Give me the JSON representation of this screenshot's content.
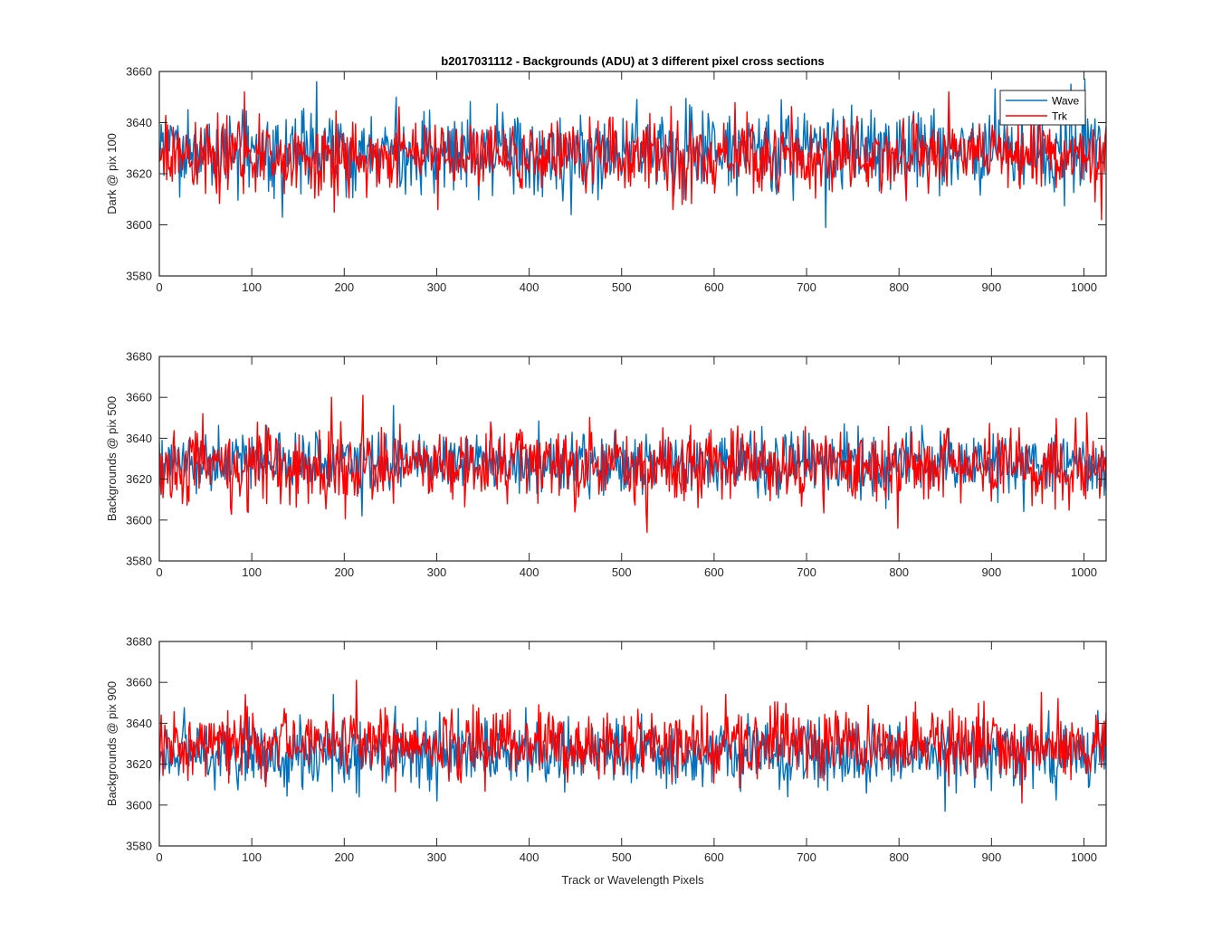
{
  "chart_data": [
    {
      "type": "line",
      "title": "b2017031112 - Backgrounds (ADU) at 3 different pixel cross sections",
      "xlabel": "",
      "ylabel": "Dark @ pix 100",
      "xlim": [
        0,
        1024
      ],
      "ylim": [
        3580,
        3660
      ],
      "xticks": [
        0,
        100,
        200,
        300,
        400,
        500,
        600,
        700,
        800,
        900,
        1000
      ],
      "yticks": [
        3580,
        3600,
        3620,
        3640,
        3660
      ],
      "legend": {
        "placement": "top-right",
        "entries": [
          "Wave",
          "Trk"
        ]
      },
      "grid": false,
      "series": [
        {
          "name": "Wave",
          "color": "#0072BD",
          "n_points": 1024,
          "mean": 3629,
          "approx_min": 3599,
          "approx_max": 3657,
          "spikes": [
            [
              170,
              3656
            ],
            [
              720,
              3599
            ],
            [
              1000,
              3657
            ],
            [
              133,
              3603
            ],
            [
              445,
              3604
            ],
            [
              985,
              3655
            ]
          ]
        },
        {
          "name": "Trk",
          "color": "#FF0000",
          "n_points": 1024,
          "mean": 3627,
          "approx_min": 3602,
          "approx_max": 3654,
          "spikes": [
            [
              92,
              3652
            ],
            [
              189,
              3605
            ],
            [
              1018,
              3602
            ],
            [
              853,
              3652
            ],
            [
              555,
              3606
            ]
          ]
        }
      ]
    },
    {
      "type": "line",
      "title": "",
      "xlabel": "",
      "ylabel": "Backgrounds @ pix 500",
      "xlim": [
        0,
        1024
      ],
      "ylim": [
        3580,
        3680
      ],
      "xticks": [
        0,
        100,
        200,
        300,
        400,
        500,
        600,
        700,
        800,
        900,
        1000
      ],
      "yticks": [
        3580,
        3600,
        3620,
        3640,
        3660,
        3680
      ],
      "grid": false,
      "series": [
        {
          "name": "Wave",
          "color": "#0072BD",
          "n_points": 1024,
          "mean": 3628,
          "approx_min": 3602,
          "approx_max": 3656,
          "spikes": [
            [
              253,
              3656
            ],
            [
              219,
              3602
            ]
          ]
        },
        {
          "name": "Trk",
          "color": "#FF0000",
          "n_points": 1024,
          "mean": 3626,
          "approx_min": 3594,
          "approx_max": 3661,
          "spikes": [
            [
              186,
              3660
            ],
            [
              220,
              3661
            ],
            [
              527,
              3594
            ],
            [
              798,
              3596
            ]
          ]
        }
      ]
    },
    {
      "type": "line",
      "title": "",
      "xlabel": "Track or Wavelength Pixels",
      "ylabel": "Backgrounds @ pix 900",
      "xlim": [
        0,
        1024
      ],
      "ylim": [
        3580,
        3680
      ],
      "xticks": [
        0,
        100,
        200,
        300,
        400,
        500,
        600,
        700,
        800,
        900,
        1000
      ],
      "yticks": [
        3580,
        3600,
        3620,
        3640,
        3660,
        3680
      ],
      "grid": false,
      "series": [
        {
          "name": "Wave",
          "color": "#0072BD",
          "n_points": 1024,
          "mean": 3625,
          "approx_min": 3597,
          "approx_max": 3655,
          "spikes": [
            [
              188,
              3654
            ],
            [
              849,
              3597
            ],
            [
              300,
              3602
            ]
          ]
        },
        {
          "name": "Trk",
          "color": "#FF0000",
          "n_points": 1024,
          "mean": 3630,
          "approx_min": 3601,
          "approx_max": 3661,
          "spikes": [
            [
              213,
              3661
            ],
            [
              93,
              3654
            ],
            [
              953,
              3655
            ],
            [
              932,
              3601
            ]
          ]
        }
      ]
    }
  ]
}
